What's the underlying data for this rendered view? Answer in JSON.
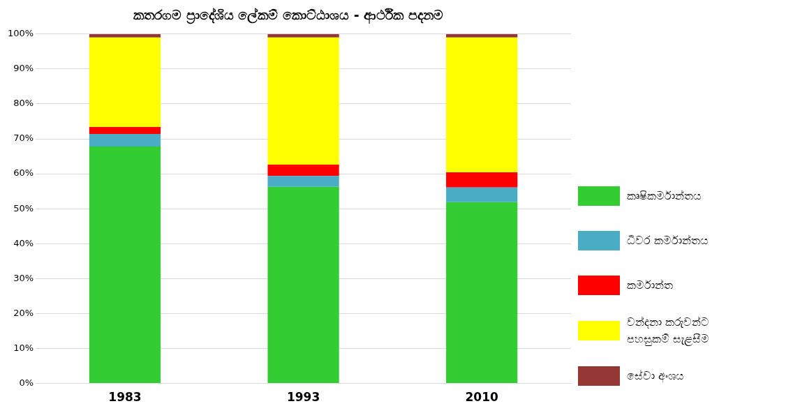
{
  "chart_data": {
    "type": "bar",
    "title": "කතරගම ප්‍රාදේශිය ලේකම් කොට්ඨාශය - ආර්ථික පදනම",
    "categories": [
      "1983",
      "1993",
      "2010"
    ],
    "stacked": true,
    "legend": "right",
    "grid": "y",
    "ylim": [
      0,
      100
    ],
    "yticks": [
      {
        "value": 0,
        "label": "0%"
      },
      {
        "value": 10,
        "label": "10%"
      },
      {
        "value": 20,
        "label": "20%"
      },
      {
        "value": 30,
        "label": "30%"
      },
      {
        "value": 40,
        "label": "40%"
      },
      {
        "value": 50,
        "label": "50%"
      },
      {
        "value": 60,
        "label": "60%"
      },
      {
        "value": 70,
        "label": "70%"
      },
      {
        "value": 80,
        "label": "80%"
      },
      {
        "value": 90,
        "label": "90%"
      },
      {
        "value": 100,
        "label": "100%"
      }
    ],
    "series": [
      {
        "name": "කෘෂිකර්මාන්තය",
        "color": "#33cc33",
        "values": [
          67.8,
          56.3,
          51.9
        ]
      },
      {
        "name": "ධීවර කර්මාන්තය",
        "color": "#4bacc6",
        "values": [
          3.6,
          3.1,
          4.2
        ]
      },
      {
        "name": "කර්මාන්ත",
        "color": "#ff0000",
        "values": [
          2.0,
          3.2,
          4.3
        ]
      },
      {
        "name": "වන්දනා කරුවන්ට පහසුකම් සැළසීම",
        "color": "#ffff00",
        "values": [
          25.6,
          36.4,
          38.6
        ]
      },
      {
        "name": "සේවා අංශය",
        "color": "#953735",
        "values": [
          1.0,
          1.0,
          1.0
        ]
      }
    ]
  }
}
